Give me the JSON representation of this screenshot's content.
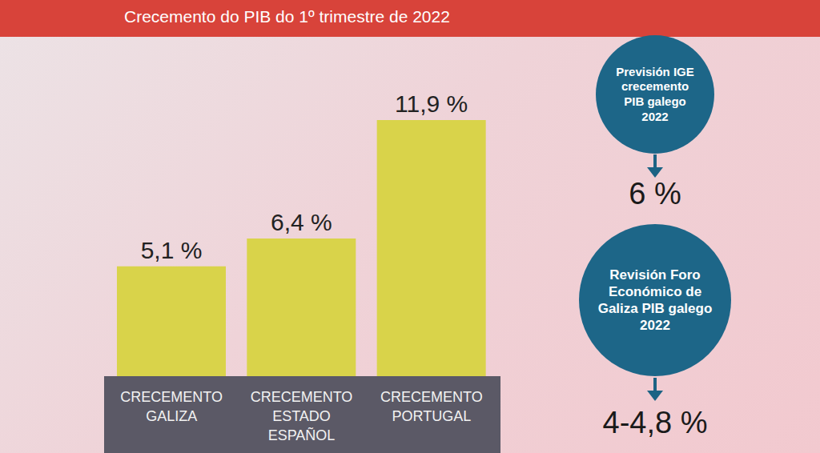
{
  "chart_data": {
    "type": "bar",
    "title": "Crecemento do PIB do 1º trimestre de 2022",
    "categories": [
      "CRECEMENTO GALIZA",
      "CRECEMENTO ESTADO ESPAÑOL",
      "CRECEMENTO PORTUGAL"
    ],
    "values": [
      5.1,
      6.4,
      11.9
    ],
    "value_labels": [
      "5,1 %",
      "6,4 %",
      "11,9 %"
    ],
    "color": "#d9d34a",
    "data_labels": true,
    "tick_labels": "x",
    "grid": false,
    "annotations": [
      {
        "text": "Previsión IGE crecemento PIB galego 2022",
        "value": "6 %"
      },
      {
        "text": "Revisión Foro Económico de Galiza PIB galego 2022",
        "value": "4-4,8 %"
      }
    ]
  }
}
